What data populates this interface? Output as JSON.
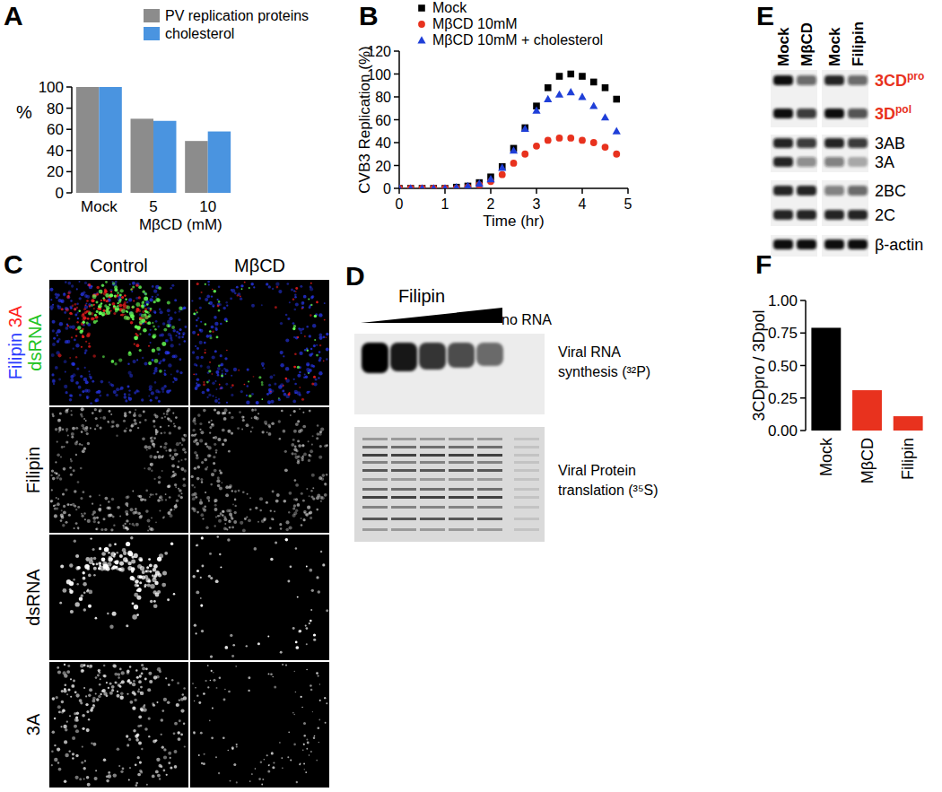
{
  "panels": [
    "A",
    "B",
    "C",
    "D",
    "E",
    "F"
  ],
  "chart_data": [
    {
      "type": "bar",
      "categories": [
        "Mock",
        "5",
        "10"
      ],
      "x_label": "MβCD (mM)",
      "y_label": "%",
      "ylim": [
        0,
        100
      ],
      "yticks": [
        0,
        20,
        40,
        60,
        80,
        100
      ],
      "legend": "top-right",
      "series": [
        {
          "name": "PV replication proteins",
          "color": "#8c8c8c",
          "values": [
            100,
            70,
            49
          ]
        },
        {
          "name": "cholesterol",
          "color": "#4a94e0",
          "values": [
            100,
            68,
            58
          ]
        }
      ]
    },
    {
      "type": "scatter",
      "x": [
        0,
        0.25,
        0.5,
        0.75,
        1,
        1.25,
        1.5,
        1.75,
        2,
        2.25,
        2.5,
        2.75,
        3,
        3.25,
        3.5,
        3.75,
        4,
        4.25,
        4.5,
        4.75
      ],
      "xlim": [
        0,
        5
      ],
      "xticks": [
        0,
        1,
        2,
        3,
        4,
        5
      ],
      "ylim": [
        0,
        120
      ],
      "yticks": [
        0,
        20,
        40,
        60,
        80,
        100,
        120
      ],
      "x_label": "Time (hr)",
      "y_label": "CVB3 Replication (%)",
      "legend": "top-left",
      "series": [
        {
          "name": "Mock",
          "color": "#000000",
          "marker": "square",
          "values": [
            0,
            0,
            0,
            0,
            0,
            1,
            2,
            5,
            10,
            19,
            35,
            53,
            72,
            88,
            98,
            100,
            98,
            93,
            88,
            78
          ]
        },
        {
          "name": "MβCD 10mM",
          "color": "#e8321e",
          "marker": "circle",
          "values": [
            0,
            0,
            0,
            0,
            0,
            0,
            1,
            3,
            6,
            12,
            22,
            30,
            37,
            42,
            44,
            44,
            42,
            40,
            36,
            30
          ]
        },
        {
          "name": "MβCD 10mM + cholesterol",
          "color": "#1f3fd8",
          "marker": "triangle",
          "values": [
            0,
            0,
            0,
            0,
            0,
            1,
            2,
            4,
            8,
            18,
            33,
            52,
            68,
            78,
            82,
            84,
            80,
            72,
            62,
            50
          ]
        }
      ]
    },
    {
      "type": "bar",
      "categories": [
        "Mock",
        "MβCD",
        "Filipin"
      ],
      "values": [
        0.79,
        0.31,
        0.11
      ],
      "colors": [
        "#000000",
        "#e8321e",
        "#e8321e"
      ],
      "ylim": [
        0,
        1
      ],
      "yticks": [
        {
          "value": 0,
          "label": "0.00"
        },
        0.25,
        {
          "value": 0.5,
          "label": "0.50"
        },
        0.75,
        {
          "value": 1,
          "label": "1.00"
        }
      ],
      "y_label": "3CDpro / 3Dpol"
    }
  ],
  "micrograph": {
    "columns": [
      "Control",
      "MβCD"
    ],
    "rows": [
      {
        "label": [
          {
            "text": "Filipin",
            "color": "#2b3bff"
          },
          {
            "text": "3A",
            "color": "#ff2020"
          },
          {
            "text": "dsRNA",
            "color": "#22c322"
          }
        ]
      },
      {
        "label": "Filipin"
      },
      {
        "label": "dsRNA"
      },
      {
        "label": "3A"
      }
    ]
  },
  "gel": {
    "wedge_label": "Filipin",
    "control_label": "no RNA",
    "panels": [
      [
        "Viral RNA",
        "synthesis (³²P)"
      ],
      [
        "Viral Protein",
        "translation (³⁵S)"
      ]
    ]
  },
  "western_blot": {
    "columns": [
      "Mock",
      "MβCD",
      "Mock",
      "Filipin"
    ],
    "rows": [
      {
        "label": "3CD",
        "sup": "pro",
        "color": "#e8321e"
      },
      {
        "label": "3D",
        "sup": "pol",
        "color": "#e8321e"
      },
      {
        "label": "3AB"
      },
      {
        "label": "3A"
      },
      {
        "label": "2BC"
      },
      {
        "label": "2C"
      },
      {
        "label": "β-actin"
      }
    ]
  }
}
